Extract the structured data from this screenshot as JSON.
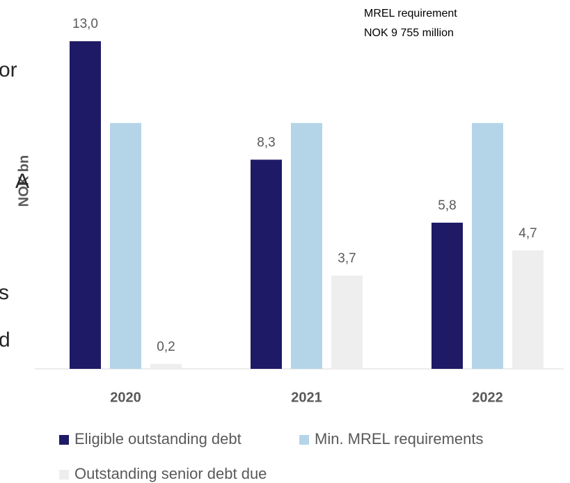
{
  "chart_data": {
    "type": "bar",
    "y_label": "NOK bn",
    "annotations": [
      "MREL requirement",
      "NOK 9 755 million"
    ],
    "categories": [
      "2020",
      "2021",
      "2022"
    ],
    "series": [
      {
        "name": "Eligible outstanding debt",
        "color": "#1f1a66",
        "values": [
          13.0,
          8.3,
          5.8
        ],
        "value_labels": [
          "13,0",
          "8,3",
          "5,8"
        ]
      },
      {
        "name": "Min. MREL requirements",
        "color": "#b4d5e8",
        "values": [
          9.755,
          9.755,
          9.755
        ]
      },
      {
        "name": "Outstanding senior debt due",
        "color": "#eeeeee",
        "values": [
          0.2,
          3.7,
          4.7
        ],
        "value_labels": [
          "0,2",
          "3,7",
          "4,7"
        ]
      }
    ],
    "ylim": [
      0,
      14
    ]
  },
  "side_fragments": [
    "or",
    "A",
    "s",
    "d"
  ]
}
